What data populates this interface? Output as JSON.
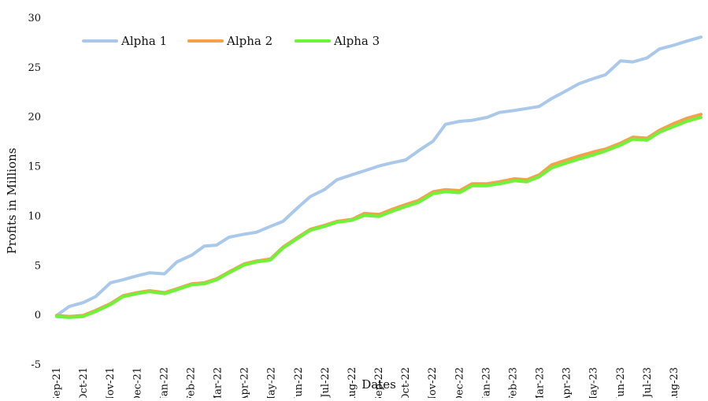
{
  "chart_data": {
    "type": "line",
    "title": "",
    "xlabel": "Dates",
    "ylabel": "Profits in Millions",
    "ylim": [
      -5,
      30
    ],
    "yticks": [
      -5,
      0,
      5,
      10,
      15,
      20,
      25,
      30
    ],
    "x_tick_labels": [
      "Sep-21",
      "Oct-21",
      "Nov-21",
      "Dec-21",
      "Jan-22",
      "Feb-22",
      "Mar-22",
      "Apr-22",
      "May-22",
      "Jun-22",
      "Jul-22",
      "Aug-22",
      "Sep-22",
      "Oct-22",
      "Nov-22",
      "Dec-22",
      "Jan-23",
      "Feb-23",
      "Mar-23",
      "Apr-23",
      "May-23",
      "Jun-23",
      "Jul-23",
      "Aug-23"
    ],
    "legend_position": "top-left",
    "grid": false,
    "x": [
      "2021-09-01",
      "2021-09-15",
      "2021-10-01",
      "2021-10-15",
      "2021-11-01",
      "2021-11-15",
      "2021-12-01",
      "2021-12-15",
      "2022-01-01",
      "2022-01-15",
      "2022-02-01",
      "2022-02-15",
      "2022-03-01",
      "2022-03-15",
      "2022-04-01",
      "2022-04-15",
      "2022-05-01",
      "2022-05-15",
      "2022-06-01",
      "2022-06-15",
      "2022-07-01",
      "2022-07-15",
      "2022-08-01",
      "2022-08-15",
      "2022-09-01",
      "2022-09-15",
      "2022-10-01",
      "2022-10-15",
      "2022-11-01",
      "2022-11-15",
      "2022-12-01",
      "2022-12-15",
      "2023-01-01",
      "2023-01-15",
      "2023-02-01",
      "2023-02-15",
      "2023-03-01",
      "2023-03-15",
      "2023-04-01",
      "2023-04-15",
      "2023-05-01",
      "2023-05-15",
      "2023-06-01",
      "2023-06-15",
      "2023-07-01",
      "2023-07-15",
      "2023-08-01",
      "2023-08-15",
      "2023-08-31"
    ],
    "series": [
      {
        "name": "Alpha 1",
        "color": "#a9c8ea",
        "values": [
          -0.1,
          0.8,
          1.2,
          1.8,
          3.2,
          3.5,
          3.9,
          4.2,
          4.1,
          5.3,
          6.0,
          6.9,
          7.0,
          7.8,
          8.1,
          8.3,
          8.9,
          9.4,
          10.8,
          11.9,
          12.6,
          13.6,
          14.1,
          14.5,
          15.0,
          15.3,
          15.6,
          16.5,
          17.5,
          19.2,
          19.5,
          19.6,
          19.9,
          20.4,
          20.6,
          20.8,
          21.0,
          21.8,
          22.6,
          23.3,
          23.8,
          24.2,
          25.6,
          25.5,
          25.9,
          26.8,
          27.2,
          27.6,
          28.0
        ]
      },
      {
        "name": "Alpha 2",
        "color": "#f5a14c",
        "values": [
          -0.1,
          -0.2,
          -0.1,
          0.4,
          1.1,
          1.9,
          2.2,
          2.4,
          2.2,
          2.6,
          3.1,
          3.2,
          3.6,
          4.3,
          5.1,
          5.4,
          5.6,
          6.8,
          7.8,
          8.6,
          9.0,
          9.4,
          9.6,
          10.2,
          10.1,
          10.6,
          11.1,
          11.5,
          12.4,
          12.6,
          12.5,
          13.2,
          13.2,
          13.4,
          13.7,
          13.6,
          14.1,
          15.1,
          15.6,
          16.0,
          16.4,
          16.7,
          17.3,
          17.9,
          17.8,
          18.6,
          19.3,
          19.8,
          20.2
        ]
      },
      {
        "name": "Alpha 3",
        "color": "#6ef23a",
        "values": [
          -0.2,
          -0.3,
          -0.2,
          0.3,
          1.0,
          1.8,
          2.1,
          2.3,
          2.1,
          2.5,
          3.0,
          3.1,
          3.5,
          4.2,
          5.0,
          5.3,
          5.5,
          6.7,
          7.7,
          8.5,
          8.9,
          9.3,
          9.5,
          10.0,
          9.9,
          10.4,
          10.9,
          11.3,
          12.2,
          12.4,
          12.3,
          13.0,
          13.0,
          13.2,
          13.5,
          13.4,
          13.9,
          14.8,
          15.3,
          15.7,
          16.1,
          16.5,
          17.1,
          17.7,
          17.6,
          18.4,
          19.0,
          19.5,
          19.9
        ]
      }
    ]
  }
}
